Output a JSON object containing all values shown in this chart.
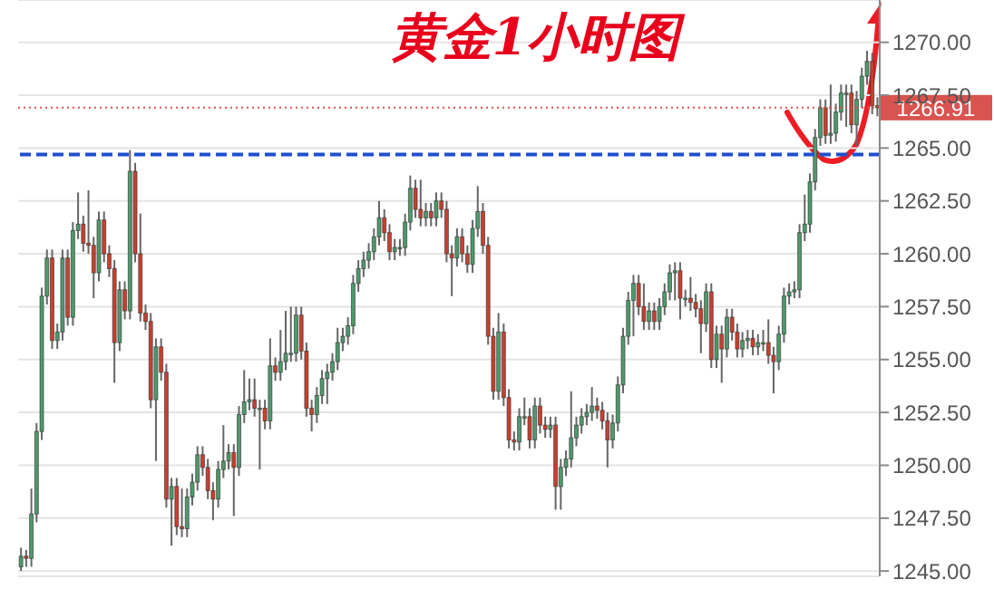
{
  "chart_data": {
    "type": "candlestick",
    "title": "黄金1小时图",
    "categories": [
      null,
      null,
      null,
      null,
      null,
      null,
      null,
      null,
      null,
      null,
      null,
      null,
      null,
      null,
      null,
      null,
      null,
      null,
      null,
      null,
      null,
      null,
      null,
      null,
      null,
      null,
      null,
      null,
      null,
      null,
      null,
      null,
      null,
      null,
      null,
      null,
      null,
      null,
      null,
      null,
      null,
      null,
      null,
      null,
      null,
      null,
      null,
      null,
      null,
      null,
      null,
      null,
      null,
      null,
      null,
      null,
      null,
      null,
      null,
      null,
      null,
      null,
      null,
      null,
      null,
      null,
      null,
      null,
      null,
      null,
      null,
      null,
      null,
      null,
      null,
      null,
      null,
      null,
      null,
      null,
      null,
      null,
      null,
      null,
      null,
      null,
      null,
      null,
      null,
      null,
      null,
      null,
      null,
      null,
      null,
      null,
      null,
      null,
      null,
      null,
      null,
      null,
      null,
      null,
      null,
      null,
      null,
      null,
      null,
      null,
      null,
      null,
      null,
      null,
      null,
      null,
      null,
      null,
      null,
      null,
      null,
      null,
      null,
      null,
      null,
      null,
      null,
      null,
      null,
      null,
      null,
      null,
      null,
      null,
      null,
      null,
      null,
      null,
      null,
      null,
      null,
      null,
      null,
      null,
      null,
      null,
      null,
      null,
      null,
      null,
      null,
      null,
      null,
      null,
      null,
      null,
      null,
      null,
      null,
      null,
      null,
      null,
      null,
      null,
      null,
      null
    ],
    "ohlc": [
      [
        1245.2,
        1246.1,
        1245.0,
        1245.7
      ],
      [
        1245.7,
        1246.0,
        1245.2,
        1245.6
      ],
      [
        1245.6,
        1248.9,
        1245.2,
        1247.7
      ],
      [
        1247.7,
        1252.0,
        1247.3,
        1251.6
      ],
      [
        1251.6,
        1258.4,
        1251.2,
        1258.0
      ],
      [
        1258.0,
        1260.2,
        1257.6,
        1259.8
      ],
      [
        1259.8,
        1260.2,
        1255.5,
        1255.9
      ],
      [
        1255.9,
        1256.7,
        1255.5,
        1256.3
      ],
      [
        1256.3,
        1260.2,
        1255.9,
        1259.8
      ],
      [
        1259.8,
        1260.2,
        1256.6,
        1257.0
      ],
      [
        1257.0,
        1261.5,
        1256.6,
        1261.1
      ],
      [
        1261.1,
        1262.9,
        1260.7,
        1261.4
      ],
      [
        1261.4,
        1261.8,
        1260.1,
        1260.5
      ],
      [
        1260.5,
        1263.0,
        1260.0,
        1260.4
      ],
      [
        1260.4,
        1260.8,
        1257.9,
        1259.1
      ],
      [
        1259.1,
        1262.0,
        1258.7,
        1261.6
      ],
      [
        1261.6,
        1262.0,
        1259.6,
        1260.0
      ],
      [
        1260.0,
        1260.4,
        1258.9,
        1259.3
      ],
      [
        1259.3,
        1259.7,
        1253.9,
        1255.8
      ],
      [
        1255.8,
        1258.7,
        1255.4,
        1258.3
      ],
      [
        1258.3,
        1258.7,
        1256.9,
        1257.3
      ],
      [
        1257.3,
        1264.9,
        1256.9,
        1263.9
      ],
      [
        1263.9,
        1264.3,
        1259.6,
        1260.0
      ],
      [
        1260.0,
        1261.9,
        1256.8,
        1257.2
      ],
      [
        1257.2,
        1257.6,
        1256.4,
        1256.8
      ],
      [
        1256.8,
        1257.2,
        1252.7,
        1253.1
      ],
      [
        1253.1,
        1256.0,
        1250.2,
        1255.6
      ],
      [
        1255.6,
        1256.0,
        1254.0,
        1254.4
      ],
      [
        1254.4,
        1254.8,
        1248.0,
        1248.4
      ],
      [
        1248.4,
        1249.4,
        1246.2,
        1249.0
      ],
      [
        1249.0,
        1249.4,
        1246.7,
        1247.1
      ],
      [
        1247.1,
        1248.9,
        1246.6,
        1247.0
      ],
      [
        1247.0,
        1248.9,
        1246.6,
        1248.5
      ],
      [
        1248.5,
        1249.6,
        1248.1,
        1249.2
      ],
      [
        1249.2,
        1250.9,
        1248.8,
        1250.5
      ],
      [
        1250.5,
        1250.9,
        1249.5,
        1249.9
      ],
      [
        1249.9,
        1250.3,
        1248.4,
        1248.8
      ],
      [
        1248.8,
        1249.2,
        1247.4,
        1248.4
      ],
      [
        1248.4,
        1250.2,
        1248.0,
        1249.8
      ],
      [
        1249.8,
        1251.9,
        1249.4,
        1250.2
      ],
      [
        1250.2,
        1251.0,
        1249.8,
        1250.6
      ],
      [
        1250.6,
        1251.0,
        1247.6,
        1249.9
      ],
      [
        1249.9,
        1252.8,
        1249.5,
        1252.4
      ],
      [
        1252.4,
        1254.5,
        1252.0,
        1253.0
      ],
      [
        1253.0,
        1254.1,
        1252.6,
        1253.1
      ],
      [
        1253.1,
        1254.1,
        1252.3,
        1252.7
      ],
      [
        1252.7,
        1253.1,
        1249.8,
        1252.7
      ],
      [
        1252.7,
        1253.1,
        1251.7,
        1252.1
      ],
      [
        1252.1,
        1256.0,
        1251.7,
        1254.7
      ],
      [
        1254.7,
        1255.1,
        1254.0,
        1254.4
      ],
      [
        1254.4,
        1256.4,
        1254.0,
        1254.9
      ],
      [
        1254.9,
        1257.3,
        1254.5,
        1255.3
      ],
      [
        1255.3,
        1257.5,
        1254.9,
        1255.3
      ],
      [
        1255.3,
        1257.5,
        1254.9,
        1257.1
      ],
      [
        1257.1,
        1257.5,
        1255.0,
        1255.4
      ],
      [
        1255.4,
        1255.8,
        1252.3,
        1252.7
      ],
      [
        1252.7,
        1253.1,
        1251.6,
        1252.4
      ],
      [
        1252.4,
        1253.7,
        1252.0,
        1253.3
      ],
      [
        1253.3,
        1254.5,
        1252.9,
        1254.1
      ],
      [
        1254.1,
        1254.8,
        1252.9,
        1254.4
      ],
      [
        1254.4,
        1255.3,
        1254.0,
        1254.9
      ],
      [
        1254.9,
        1256.5,
        1254.5,
        1255.8
      ],
      [
        1255.8,
        1256.5,
        1255.4,
        1256.1
      ],
      [
        1256.1,
        1257.0,
        1255.7,
        1256.6
      ],
      [
        1256.6,
        1259.0,
        1256.2,
        1258.6
      ],
      [
        1258.6,
        1259.7,
        1258.2,
        1259.3
      ],
      [
        1259.3,
        1260.1,
        1258.9,
        1259.7
      ],
      [
        1259.7,
        1260.5,
        1259.3,
        1260.1
      ],
      [
        1260.1,
        1261.2,
        1259.7,
        1260.8
      ],
      [
        1260.8,
        1262.5,
        1260.4,
        1261.7
      ],
      [
        1261.7,
        1262.1,
        1260.6,
        1261.0
      ],
      [
        1261.0,
        1261.4,
        1259.7,
        1260.1
      ],
      [
        1260.1,
        1260.7,
        1259.7,
        1260.3
      ],
      [
        1260.3,
        1260.7,
        1259.9,
        1260.3
      ],
      [
        1260.3,
        1261.9,
        1259.9,
        1261.5
      ],
      [
        1261.5,
        1263.7,
        1261.1,
        1263.1
      ],
      [
        1263.1,
        1263.5,
        1261.7,
        1262.1
      ],
      [
        1262.1,
        1263.5,
        1261.3,
        1261.7
      ],
      [
        1261.7,
        1262.4,
        1261.3,
        1262.0
      ],
      [
        1262.0,
        1262.4,
        1261.3,
        1261.7
      ],
      [
        1261.7,
        1262.9,
        1261.3,
        1262.5
      ],
      [
        1262.5,
        1262.9,
        1261.7,
        1262.1
      ],
      [
        1262.1,
        1262.5,
        1259.6,
        1260.0
      ],
      [
        1260.0,
        1260.4,
        1258.0,
        1259.8
      ],
      [
        1259.8,
        1261.2,
        1259.4,
        1260.8
      ],
      [
        1260.8,
        1261.2,
        1259.6,
        1260.0
      ],
      [
        1260.0,
        1260.4,
        1259.1,
        1259.5
      ],
      [
        1259.5,
        1261.6,
        1259.1,
        1261.2
      ],
      [
        1261.2,
        1263.2,
        1260.8,
        1262.0
      ],
      [
        1262.0,
        1262.4,
        1260.0,
        1260.4
      ],
      [
        1260.4,
        1260.8,
        1255.7,
        1256.1
      ],
      [
        1256.1,
        1256.5,
        1253.1,
        1253.5
      ],
      [
        1253.5,
        1257.2,
        1253.1,
        1256.3
      ],
      [
        1256.3,
        1256.7,
        1252.8,
        1253.2
      ],
      [
        1253.2,
        1253.6,
        1250.8,
        1251.2
      ],
      [
        1251.2,
        1251.6,
        1250.7,
        1251.1
      ],
      [
        1251.1,
        1252.7,
        1250.7,
        1252.3
      ],
      [
        1252.3,
        1253.2,
        1251.9,
        1252.3
      ],
      [
        1252.3,
        1252.7,
        1250.8,
        1251.2
      ],
      [
        1251.2,
        1253.2,
        1250.8,
        1252.8
      ],
      [
        1252.8,
        1253.2,
        1251.5,
        1251.9
      ],
      [
        1251.9,
        1252.3,
        1251.3,
        1251.7
      ],
      [
        1251.7,
        1252.3,
        1251.3,
        1251.9
      ],
      [
        1251.9,
        1252.3,
        1247.9,
        1249.0
      ],
      [
        1249.0,
        1250.3,
        1247.9,
        1249.9
      ],
      [
        1249.9,
        1250.7,
        1249.5,
        1250.3
      ],
      [
        1250.3,
        1253.5,
        1249.9,
        1251.3
      ],
      [
        1251.3,
        1252.3,
        1250.9,
        1251.9
      ],
      [
        1251.9,
        1252.7,
        1251.5,
        1252.3
      ],
      [
        1252.3,
        1252.9,
        1251.9,
        1252.5
      ],
      [
        1252.5,
        1253.7,
        1252.1,
        1252.8
      ],
      [
        1252.8,
        1253.2,
        1252.2,
        1252.6
      ],
      [
        1252.6,
        1253.0,
        1251.7,
        1252.1
      ],
      [
        1252.1,
        1252.5,
        1249.9,
        1251.2
      ],
      [
        1251.2,
        1252.4,
        1250.8,
        1252.0
      ],
      [
        1252.0,
        1254.2,
        1251.6,
        1253.8
      ],
      [
        1253.8,
        1256.5,
        1253.4,
        1256.1
      ],
      [
        1256.1,
        1258.2,
        1255.7,
        1257.8
      ],
      [
        1257.8,
        1259.0,
        1256.1,
        1258.6
      ],
      [
        1258.6,
        1259.0,
        1257.1,
        1257.5
      ],
      [
        1257.5,
        1258.6,
        1256.4,
        1256.8
      ],
      [
        1256.8,
        1257.7,
        1256.4,
        1257.3
      ],
      [
        1257.3,
        1257.7,
        1256.4,
        1256.8
      ],
      [
        1256.8,
        1257.9,
        1256.4,
        1257.5
      ],
      [
        1257.5,
        1258.6,
        1257.1,
        1258.2
      ],
      [
        1258.2,
        1259.5,
        1257.8,
        1259.1
      ],
      [
        1259.1,
        1259.6,
        1257.8,
        1259.2
      ],
      [
        1259.2,
        1259.6,
        1256.9,
        1257.9
      ],
      [
        1257.9,
        1258.3,
        1257.5,
        1257.9
      ],
      [
        1257.9,
        1258.9,
        1257.3,
        1257.7
      ],
      [
        1257.7,
        1258.1,
        1257.0,
        1257.4
      ],
      [
        1257.4,
        1257.8,
        1255.3,
        1256.7
      ],
      [
        1256.7,
        1258.6,
        1256.3,
        1258.2
      ],
      [
        1258.2,
        1258.6,
        1254.6,
        1255.0
      ],
      [
        1255.0,
        1256.6,
        1254.6,
        1256.2
      ],
      [
        1256.2,
        1256.6,
        1253.9,
        1255.5
      ],
      [
        1255.5,
        1257.4,
        1255.1,
        1257.0
      ],
      [
        1257.0,
        1257.4,
        1255.9,
        1256.3
      ],
      [
        1256.3,
        1256.7,
        1255.1,
        1255.5
      ],
      [
        1255.5,
        1256.3,
        1255.1,
        1255.9
      ],
      [
        1255.9,
        1256.4,
        1255.5,
        1256.0
      ],
      [
        1256.0,
        1256.4,
        1255.2,
        1255.6
      ],
      [
        1255.6,
        1256.2,
        1255.2,
        1255.8
      ],
      [
        1255.8,
        1256.4,
        1255.4,
        1255.8
      ],
      [
        1255.8,
        1256.9,
        1254.8,
        1255.2
      ],
      [
        1255.2,
        1255.6,
        1253.4,
        1254.9
      ],
      [
        1254.9,
        1256.6,
        1254.5,
        1256.2
      ],
      [
        1256.2,
        1258.4,
        1255.8,
        1258.0
      ],
      [
        1258.0,
        1258.6,
        1257.6,
        1258.2
      ],
      [
        1258.2,
        1258.7,
        1257.9,
        1258.3
      ],
      [
        1258.3,
        1261.4,
        1257.9,
        1261.0
      ],
      [
        1261.0,
        1262.8,
        1260.6,
        1261.4
      ],
      [
        1261.4,
        1263.8,
        1261.0,
        1263.4
      ],
      [
        1263.4,
        1265.9,
        1263.0,
        1265.5
      ],
      [
        1265.5,
        1267.3,
        1265.1,
        1266.9
      ],
      [
        1266.9,
        1267.3,
        1265.2,
        1265.6
      ],
      [
        1265.6,
        1268.0,
        1265.2,
        1265.7
      ],
      [
        1265.7,
        1267.1,
        1265.3,
        1266.7
      ],
      [
        1266.7,
        1268.0,
        1266.3,
        1267.6
      ],
      [
        1267.6,
        1268.0,
        1266.0,
        1267.6
      ],
      [
        1267.6,
        1268.0,
        1265.7,
        1266.1
      ],
      [
        1266.1,
        1267.7,
        1265.1,
        1267.3
      ],
      [
        1267.3,
        1268.8,
        1266.9,
        1268.4
      ],
      [
        1268.4,
        1269.6,
        1268.0,
        1269.1
      ],
      [
        1269.1,
        1269.5,
        1266.6,
        1267.0
      ],
      [
        1267.0,
        1267.4,
        1266.5,
        1266.91
      ]
    ],
    "colors": [
      "#4f9a6c",
      "#c9402f",
      "#4f9a6c",
      "#4f9a6c",
      "#4f9a6c",
      "#4f9a6c",
      "#c9402f",
      "#4f9a6c",
      "#4f9a6c",
      "#c9402f",
      "#4f9a6c",
      "#4f9a6c",
      "#c9402f",
      "#c9402f",
      "#c9402f",
      "#4f9a6c",
      "#c9402f",
      "#c9402f",
      "#c9402f",
      "#4f9a6c",
      "#c9402f",
      "#4f9a6c",
      "#c9402f",
      "#c9402f",
      "#c9402f",
      "#c9402f",
      "#4f9a6c",
      "#c9402f",
      "#c9402f",
      "#4f9a6c",
      "#c9402f",
      "#c9402f",
      "#4f9a6c",
      "#4f9a6c",
      "#4f9a6c",
      "#c9402f",
      "#c9402f",
      "#c9402f",
      "#4f9a6c",
      "#4f9a6c",
      "#4f9a6c",
      "#c9402f",
      "#4f9a6c",
      "#4f9a6c",
      "#4f9a6c",
      "#c9402f",
      "#4f9a6c",
      "#c9402f",
      "#4f9a6c",
      "#c9402f",
      "#4f9a6c",
      "#4f9a6c",
      "#4f9a6c",
      "#4f9a6c",
      "#c9402f",
      "#c9402f",
      "#c9402f",
      "#4f9a6c",
      "#4f9a6c",
      "#4f9a6c",
      "#4f9a6c",
      "#4f9a6c",
      "#4f9a6c",
      "#4f9a6c",
      "#4f9a6c",
      "#4f9a6c",
      "#4f9a6c",
      "#4f9a6c",
      "#4f9a6c",
      "#4f9a6c",
      "#c9402f",
      "#c9402f",
      "#4f9a6c",
      "#4f9a6c",
      "#4f9a6c",
      "#4f9a6c",
      "#c9402f",
      "#c9402f",
      "#4f9a6c",
      "#c9402f",
      "#4f9a6c",
      "#c9402f",
      "#c9402f",
      "#c9402f",
      "#4f9a6c",
      "#c9402f",
      "#c9402f",
      "#4f9a6c",
      "#4f9a6c",
      "#c9402f",
      "#c9402f",
      "#c9402f",
      "#4f9a6c",
      "#c9402f",
      "#c9402f",
      "#c9402f",
      "#4f9a6c",
      "#4f9a6c",
      "#c9402f",
      "#4f9a6c",
      "#c9402f",
      "#c9402f",
      "#4f9a6c",
      "#c9402f",
      "#4f9a6c",
      "#4f9a6c",
      "#4f9a6c",
      "#4f9a6c",
      "#4f9a6c",
      "#4f9a6c",
      "#4f9a6c",
      "#c9402f",
      "#c9402f",
      "#c9402f",
      "#4f9a6c",
      "#4f9a6c",
      "#4f9a6c",
      "#4f9a6c",
      "#4f9a6c",
      "#c9402f",
      "#c9402f",
      "#4f9a6c",
      "#c9402f",
      "#4f9a6c",
      "#4f9a6c",
      "#4f9a6c",
      "#4f9a6c",
      "#c9402f",
      "#4f9a6c",
      "#c9402f",
      "#c9402f",
      "#c9402f",
      "#4f9a6c",
      "#c9402f",
      "#4f9a6c",
      "#c9402f",
      "#4f9a6c",
      "#c9402f",
      "#c9402f",
      "#4f9a6c",
      "#4f9a6c",
      "#c9402f",
      "#4f9a6c",
      "#4f9a6c",
      "#c9402f",
      "#c9402f",
      "#4f9a6c",
      "#4f9a6c",
      "#4f9a6c",
      "#4f9a6c",
      "#4f9a6c",
      "#4f9a6c",
      "#4f9a6c",
      "#4f9a6c",
      "#4f9a6c",
      "#c9402f",
      "#4f9a6c",
      "#4f9a6c",
      "#4f9a6c",
      "#4f9a6c",
      "#c9402f",
      "#4f9a6c",
      "#4f9a6c",
      "#4f9a6c",
      "#c9402f",
      "#c9402f"
    ],
    "ylim": [
      1244.75,
      1272
    ],
    "yticks": [
      {
        "value": 1245,
        "label": "1245.00"
      },
      {
        "value": 1247.5,
        "label": "1247.50"
      },
      {
        "value": 1250,
        "label": "1250.00"
      },
      {
        "value": 1252.5,
        "label": "1252.50"
      },
      {
        "value": 1255,
        "label": "1255.00"
      },
      {
        "value": 1257.5,
        "label": "1257.50"
      },
      {
        "value": 1260,
        "label": "1260.00"
      },
      {
        "value": 1262.5,
        "label": "1262.50"
      },
      {
        "value": 1265,
        "label": "1265.00"
      },
      {
        "value": 1267.5,
        "label": "1267.50"
      },
      {
        "value": 1270,
        "label": "1270.00"
      }
    ],
    "grid": "y",
    "ref_lines": [
      {
        "axis": "y",
        "value": 1264.7,
        "color": "#1f4fd0",
        "line_style": "dashed"
      },
      {
        "axis": "y",
        "value": 1266.91,
        "label": "1266.91",
        "color": "#d9534f",
        "line_style": "dotted"
      }
    ]
  }
}
